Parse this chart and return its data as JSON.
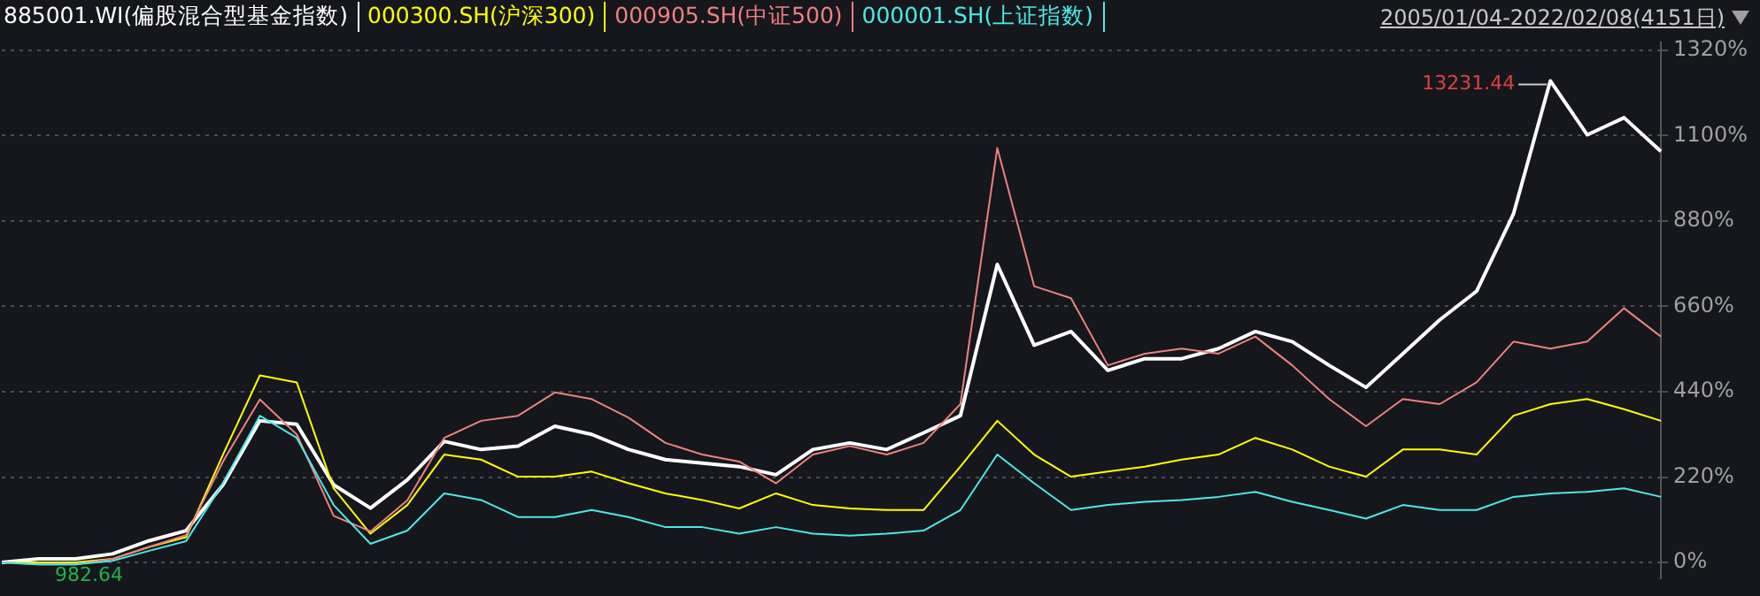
{
  "chart_data": {
    "type": "line",
    "categories": [
      null,
      null,
      null,
      null,
      null,
      null,
      null,
      null,
      null,
      null,
      null,
      null,
      null,
      null,
      null,
      null,
      null,
      null,
      null,
      null,
      null,
      null,
      null,
      null,
      null,
      null,
      null,
      null,
      null,
      null,
      null,
      null,
      null,
      null,
      null,
      null,
      null,
      null,
      null,
      null,
      null,
      null,
      null,
      null,
      null,
      null
    ],
    "series": [
      {
        "name": "885001.WI(偏股混合型基金指数)",
        "color": "#ffffff",
        "values": [
          0,
          9,
          9,
          22,
          56,
          82,
          200,
          365,
          356,
          200,
          140,
          213,
          312,
          291,
          300,
          351,
          330,
          291,
          265,
          256,
          247,
          226,
          291,
          308,
          291,
          334,
          378,
          768,
          560,
          595,
          495,
          525,
          525,
          551,
          595,
          569,
          508,
          451,
          538,
          625,
          699,
          898,
          1241,
          1102,
          1146,
          1059
        ]
      },
      {
        "name": "000300.SH(沪深300)",
        "color": "#ffff00",
        "values": [
          0,
          0,
          0,
          9,
          40,
          65,
          278,
          482,
          464,
          191,
          74,
          148,
          278,
          265,
          221,
          221,
          234,
          204,
          178,
          161,
          139,
          178,
          148,
          139,
          135,
          135,
          247,
          365,
          278,
          221,
          234,
          247,
          265,
          278,
          321,
          291,
          247,
          221,
          291,
          291,
          278,
          378,
          408,
          421,
          395,
          365
        ]
      },
      {
        "name": "000905.SH(中证500)",
        "color": "#f08080",
        "values": [
          0,
          -5,
          -5,
          9,
          40,
          70,
          260,
          420,
          330,
          120,
          80,
          160,
          321,
          365,
          378,
          438,
          421,
          373,
          308,
          278,
          260,
          204,
          278,
          300,
          278,
          308,
          408,
          1068,
          712,
          681,
          508,
          538,
          551,
          538,
          582,
          508,
          421,
          351,
          421,
          408,
          464,
          569,
          551,
          569,
          655,
          582
        ]
      },
      {
        "name": "000001.SH(上证指数)",
        "color": "#4de8e8",
        "values": [
          0,
          -5,
          -5,
          4,
          30,
          55,
          204,
          378,
          321,
          148,
          48,
          82,
          178,
          161,
          117,
          117,
          135,
          117,
          91,
          91,
          74,
          91,
          74,
          69,
          74,
          82,
          135,
          278,
          204,
          135,
          148,
          156,
          161,
          169,
          182,
          156,
          135,
          113,
          148,
          135,
          135,
          169,
          178,
          182,
          191,
          169
        ]
      }
    ],
    "ylim": [
      -40,
      1340
    ],
    "yticks": [
      {
        "value": 0,
        "label": "0%"
      },
      {
        "value": 220,
        "label": "220%"
      },
      {
        "value": 440,
        "label": "440%"
      },
      {
        "value": 660,
        "label": "660%"
      },
      {
        "value": 880,
        "label": "880%"
      },
      {
        "value": 1100,
        "label": "1100%"
      },
      {
        "value": 1320,
        "label": "1320%"
      }
    ],
    "grid": "y",
    "legend": "top left",
    "marker": "none",
    "line_style": "solid",
    "tick_labels": "y",
    "annotations": [
      "2005/01/04-2022/02/08(4151日)",
      "13231.44",
      "982.64"
    ]
  }
}
